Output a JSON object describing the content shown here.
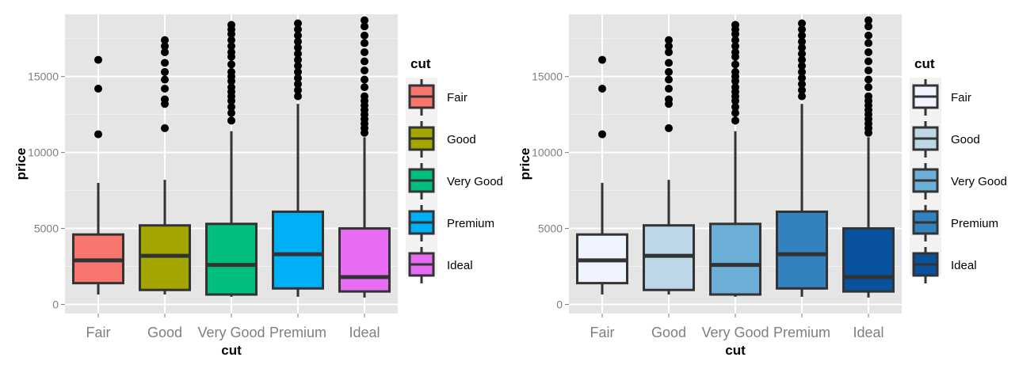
{
  "chart_data": [
    {
      "type": "boxplot",
      "xlabel": "cut",
      "ylabel": "price",
      "ylim": [
        -600,
        19100
      ],
      "yticks": [
        0,
        5000,
        10000,
        15000
      ],
      "categories": [
        "Fair",
        "Good",
        "Very Good",
        "Premium",
        "Ideal"
      ],
      "boxes": [
        {
          "category": "Fair",
          "lower_whisker": 650,
          "q1": 1400,
          "median": 2900,
          "q3": 4600,
          "upper_whisker": 8000,
          "outliers": [
            11200,
            14200,
            16100
          ]
        },
        {
          "category": "Good",
          "lower_whisker": 650,
          "q1": 950,
          "median": 3200,
          "q3": 5200,
          "upper_whisker": 8200,
          "outliers": [
            11600,
            13200,
            13500,
            14200,
            14800,
            15300,
            15900,
            16600,
            17000,
            17400
          ]
        },
        {
          "category": "Very Good",
          "lower_whisker": 500,
          "q1": 650,
          "median": 2600,
          "q3": 5300,
          "upper_whisker": 11400,
          "outliers": [
            12100,
            12600,
            13000,
            13400,
            13700,
            14000,
            14300,
            14700,
            15000,
            15300,
            15800,
            16300,
            16600,
            17000,
            17400,
            17800,
            18100,
            18400
          ]
        },
        {
          "category": "Premium",
          "lower_whisker": 500,
          "q1": 1050,
          "median": 3300,
          "q3": 6100,
          "upper_whisker": 13200,
          "outliers": [
            13700,
            14100,
            14500,
            14900,
            15300,
            15700,
            16100,
            16500,
            16900,
            17300,
            17700,
            18100,
            18500
          ]
        },
        {
          "category": "Ideal",
          "lower_whisker": 450,
          "q1": 850,
          "median": 1800,
          "q3": 5000,
          "upper_whisker": 11000,
          "outliers": [
            11300,
            11600,
            11900,
            12200,
            12500,
            12800,
            13100,
            13400,
            13700,
            14300,
            14800,
            15400,
            16000,
            16600,
            17200,
            17700,
            18300,
            18700
          ]
        }
      ],
      "fills": [
        "#F8766D",
        "#A3A500",
        "#00BF7D",
        "#00B0F6",
        "#E76BF3"
      ],
      "legend": {
        "title": "cut",
        "entries": [
          "Fair",
          "Good",
          "Very Good",
          "Premium",
          "Ideal"
        ],
        "placement": "right"
      },
      "grid": true,
      "panel_color": "#E5E5E5"
    },
    {
      "type": "boxplot",
      "xlabel": "cut",
      "ylabel": "price",
      "ylim": [
        -600,
        19100
      ],
      "yticks": [
        0,
        5000,
        10000,
        15000
      ],
      "categories": [
        "Fair",
        "Good",
        "Very Good",
        "Premium",
        "Ideal"
      ],
      "boxes": [
        {
          "category": "Fair",
          "lower_whisker": 650,
          "q1": 1400,
          "median": 2900,
          "q3": 4600,
          "upper_whisker": 8000,
          "outliers": [
            11200,
            14200,
            16100
          ]
        },
        {
          "category": "Good",
          "lower_whisker": 650,
          "q1": 950,
          "median": 3200,
          "q3": 5200,
          "upper_whisker": 8200,
          "outliers": [
            11600,
            13200,
            13500,
            14200,
            14800,
            15300,
            15900,
            16600,
            17000,
            17400
          ]
        },
        {
          "category": "Very Good",
          "lower_whisker": 500,
          "q1": 650,
          "median": 2600,
          "q3": 5300,
          "upper_whisker": 11400,
          "outliers": [
            12100,
            12600,
            13000,
            13400,
            13700,
            14000,
            14300,
            14700,
            15000,
            15300,
            15800,
            16300,
            16600,
            17000,
            17400,
            17800,
            18100,
            18400
          ]
        },
        {
          "category": "Premium",
          "lower_whisker": 500,
          "q1": 1050,
          "median": 3300,
          "q3": 6100,
          "upper_whisker": 13200,
          "outliers": [
            13700,
            14100,
            14500,
            14900,
            15300,
            15700,
            16100,
            16500,
            16900,
            17300,
            17700,
            18100,
            18500
          ]
        },
        {
          "category": "Ideal",
          "lower_whisker": 450,
          "q1": 850,
          "median": 1800,
          "q3": 5000,
          "upper_whisker": 11000,
          "outliers": [
            11300,
            11600,
            11900,
            12200,
            12500,
            12800,
            13100,
            13400,
            13700,
            14300,
            14800,
            15400,
            16000,
            16600,
            17200,
            17700,
            18300,
            18700
          ]
        }
      ],
      "fills": [
        "#EFF3FF",
        "#BDD7E7",
        "#6BAED6",
        "#3182BD",
        "#08519C"
      ],
      "legend": {
        "title": "cut",
        "entries": [
          "Fair",
          "Good",
          "Very Good",
          "Premium",
          "Ideal"
        ],
        "placement": "right"
      },
      "grid": true,
      "panel_color": "#E5E5E5"
    }
  ]
}
